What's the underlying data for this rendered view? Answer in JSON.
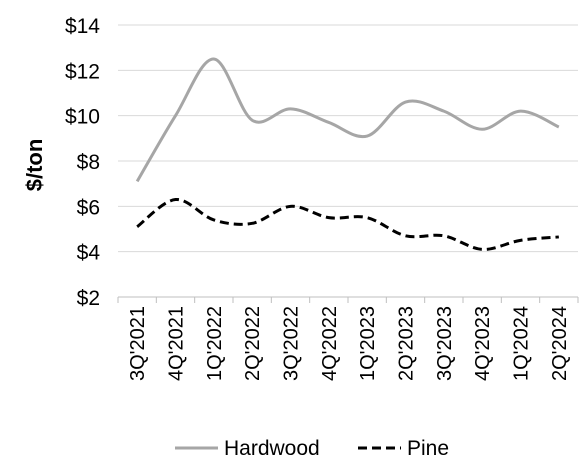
{
  "chart_data": {
    "type": "line",
    "title": "",
    "xlabel": "",
    "ylabel": "$/ton",
    "categories": [
      "3Q'2021",
      "4Q'2021",
      "1Q'2022",
      "2Q'2022",
      "3Q'2022",
      "4Q'2022",
      "1Q'2023",
      "2Q'2023",
      "3Q'2023",
      "4Q'2023",
      "1Q'2024",
      "2Q'2024"
    ],
    "y_ticks": [
      2,
      4,
      6,
      8,
      10,
      12,
      14
    ],
    "y_tick_labels": [
      "$2",
      "$4",
      "$6",
      "$8",
      "$10",
      "$12",
      "$14"
    ],
    "ylim": [
      2,
      14
    ],
    "grid": "horizontal",
    "legend_position": "bottom",
    "series": [
      {
        "name": "Hardwood",
        "values": [
          7.1,
          10.0,
          12.5,
          9.8,
          10.3,
          9.7,
          9.1,
          10.6,
          10.2,
          9.4,
          10.2,
          9.5
        ],
        "color": "#a6a6a6",
        "line_style": "solid"
      },
      {
        "name": "Pine",
        "values": [
          5.1,
          6.3,
          5.4,
          5.25,
          6.0,
          5.5,
          5.5,
          4.7,
          4.7,
          4.1,
          4.5,
          4.65
        ],
        "color": "#000000",
        "line_style": "dashed"
      }
    ]
  }
}
